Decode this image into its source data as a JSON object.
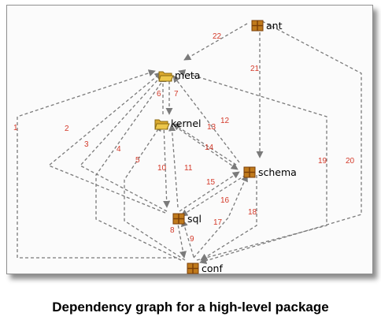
{
  "caption": "Dependency graph for a high-level package",
  "nodes": {
    "ant": {
      "label": "ant",
      "icon": "package-icon"
    },
    "meta": {
      "label": "meta",
      "icon": "open-folder-icon"
    },
    "kernel": {
      "label": "kernel",
      "icon": "open-folder-icon"
    },
    "schema": {
      "label": "schema",
      "icon": "package-icon"
    },
    "sql": {
      "label": "sql",
      "icon": "package-icon"
    },
    "conf": {
      "label": "conf",
      "icon": "package-icon"
    }
  },
  "edges": [
    {
      "label": "1",
      "from": "conf",
      "to": "meta"
    },
    {
      "label": "2",
      "from": "sql",
      "to": "meta"
    },
    {
      "label": "3",
      "from": "sql",
      "to": "meta"
    },
    {
      "label": "4",
      "from": "conf",
      "to": "meta"
    },
    {
      "label": "5",
      "from": "conf",
      "to": "kernel"
    },
    {
      "label": "6",
      "from": "kernel",
      "to": "meta"
    },
    {
      "label": "7",
      "from": "meta",
      "to": "kernel"
    },
    {
      "label": "8",
      "from": "sql",
      "to": "conf"
    },
    {
      "label": "9",
      "from": "conf",
      "to": "sql"
    },
    {
      "label": "10",
      "from": "kernel",
      "to": "sql"
    },
    {
      "label": "11",
      "from": "sql",
      "to": "kernel"
    },
    {
      "label": "12",
      "from": "schema",
      "to": "meta"
    },
    {
      "label": "13",
      "from": "schema",
      "to": "kernel"
    },
    {
      "label": "14",
      "from": "kernel",
      "to": "schema"
    },
    {
      "label": "15",
      "from": "sql",
      "to": "schema"
    },
    {
      "label": "16",
      "from": "schema",
      "to": "sql"
    },
    {
      "label": "17",
      "from": "conf",
      "to": "schema"
    },
    {
      "label": "18",
      "from": "schema",
      "to": "conf"
    },
    {
      "label": "19",
      "from": "conf",
      "to": "meta"
    },
    {
      "label": "20",
      "from": "ant",
      "to": "conf"
    },
    {
      "label": "21",
      "from": "ant",
      "to": "schema"
    },
    {
      "label": "22",
      "from": "ant",
      "to": "meta"
    }
  ],
  "colors": {
    "edge": "#7a7a7a",
    "edge_label": "#d43a2a",
    "package_icon_fill": "#c07a1c",
    "package_icon_dark": "#7a3f08",
    "folder_icon_fill": "#ecc64a"
  }
}
